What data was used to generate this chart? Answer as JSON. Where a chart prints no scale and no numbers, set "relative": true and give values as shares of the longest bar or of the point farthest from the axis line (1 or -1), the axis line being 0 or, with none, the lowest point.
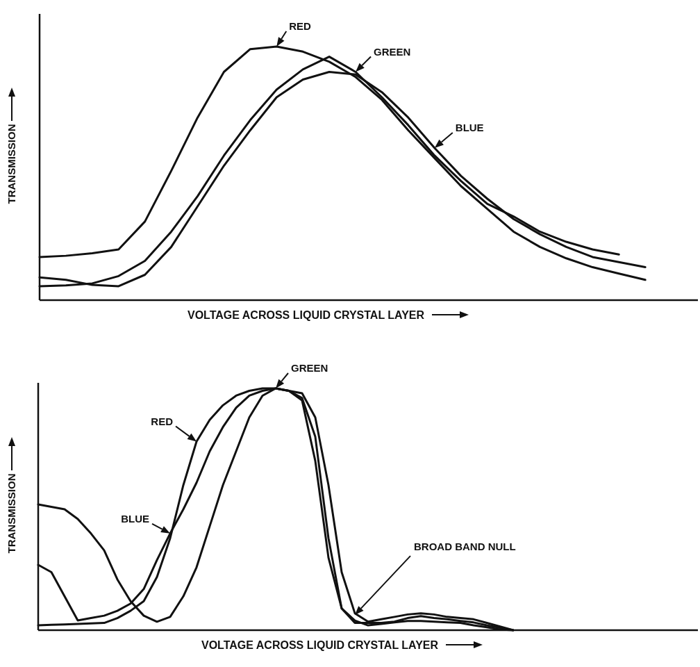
{
  "chart_data": [
    {
      "type": "line",
      "relative": true,
      "xlabel": "VOLTAGE ACROSS LIQUID CRYSTAL LAYER",
      "ylabel": "TRANSMISSION",
      "categories": [
        null,
        null,
        null,
        null,
        null,
        null,
        null,
        null,
        null,
        null,
        null,
        null,
        null,
        null,
        null,
        null,
        null,
        null,
        null,
        null,
        null,
        null,
        null,
        null,
        null,
        null
      ],
      "series": [
        {
          "name": "RED",
          "color": "#111111",
          "values": [
            0.17,
            0.175,
            0.185,
            0.2,
            0.31,
            0.51,
            0.72,
            0.9,
            0.99,
            1,
            0.98,
            0.94,
            0.88,
            0.79,
            0.67,
            0.56,
            0.45,
            0.36,
            0.27,
            0.21,
            0.165,
            0.13,
            0.105,
            0.08,
            null,
            null
          ]
        },
        {
          "name": "GREEN",
          "color": "#111111",
          "values": [
            0.055,
            0.058,
            0.066,
            0.095,
            0.155,
            0.27,
            0.41,
            0.57,
            0.71,
            0.83,
            0.91,
            0.96,
            0.9,
            0.8,
            0.69,
            0.57,
            0.47,
            0.38,
            0.33,
            0.27,
            0.23,
            0.2,
            0.18,
            null,
            null,
            null
          ]
        },
        {
          "name": "BLUE",
          "color": "#111111",
          "values": [
            0.09,
            0.08,
            0.06,
            0.055,
            0.1,
            0.21,
            0.37,
            0.53,
            0.67,
            0.8,
            0.87,
            0.9,
            0.89,
            0.82,
            0.72,
            0.6,
            0.49,
            0.4,
            0.32,
            0.26,
            0.21,
            0.17,
            0.15,
            0.13,
            null,
            null
          ]
        }
      ]
    },
    {
      "type": "line",
      "relative": true,
      "xlabel": "VOLTAGE ACROSS LIQUID CRYSTAL LAYER",
      "ylabel": "TRANSMISSION",
      "annotations": [
        "BROAD BAND NULL"
      ],
      "categories": [
        null,
        null,
        null,
        null,
        null,
        null,
        null,
        null,
        null,
        null,
        null,
        null,
        null,
        null,
        null,
        null,
        null,
        null,
        null,
        null,
        null,
        null,
        null,
        null,
        null,
        null,
        null,
        null,
        null,
        null,
        null,
        null,
        null,
        null,
        null,
        null,
        null,
        null,
        null,
        null,
        null,
        null,
        null,
        null,
        null,
        null,
        null,
        null,
        null,
        null,
        null
      ],
      "series": [
        {
          "name": "RED",
          "color": "#111111",
          "values": [
            0.02,
            0.022,
            0.024,
            0.026,
            0.028,
            0.03,
            0.05,
            0.08,
            0.12,
            0.22,
            0.38,
            0.6,
            0.78,
            0.87,
            0.93,
            0.97,
            0.99,
            1,
            1,
            0.99,
            0.95,
            0.7,
            0.3,
            0.09,
            0.04,
            0.02,
            0.026,
            0.032,
            0.038,
            0.038,
            0.035,
            0.032,
            0.03,
            0.02,
            0.012,
            0.003,
            0,
            null,
            null,
            null,
            null,
            null,
            null,
            null,
            null,
            null,
            null,
            null,
            null,
            null,
            null
          ]
        },
        {
          "name": "BLUE",
          "color": "#111111",
          "values": [
            0.27,
            0.24,
            0.14,
            0.04,
            0.05,
            0.06,
            0.08,
            0.11,
            0.17,
            0.29,
            0.4,
            0.5,
            0.61,
            0.74,
            0.84,
            0.92,
            0.97,
            0.99,
            1,
            0.99,
            0.96,
            0.8,
            0.38,
            0.09,
            0.03,
            0.03,
            0.03,
            0.035,
            0.05,
            0.058,
            0.05,
            0.045,
            0.038,
            0.032,
            0.02,
            0.01,
            0,
            null,
            null,
            null,
            null,
            null,
            null,
            null,
            null,
            null,
            null,
            null,
            null,
            null,
            null
          ]
        },
        {
          "name": "GREEN",
          "color": "#111111",
          "values": [
            0.52,
            0.51,
            0.5,
            0.46,
            0.4,
            0.33,
            0.21,
            0.12,
            0.06,
            0.035,
            0.055,
            0.14,
            0.26,
            0.43,
            0.6,
            0.74,
            0.88,
            0.97,
            1,
            0.99,
            0.98,
            0.88,
            0.6,
            0.24,
            0.07,
            0.035,
            0.045,
            0.055,
            0.065,
            0.07,
            0.065,
            0.055,
            0.05,
            0.045,
            0.03,
            0.015,
            0,
            null,
            null,
            null,
            null,
            null,
            null,
            null,
            null,
            null,
            null,
            null,
            null,
            null,
            null
          ]
        }
      ]
    }
  ]
}
